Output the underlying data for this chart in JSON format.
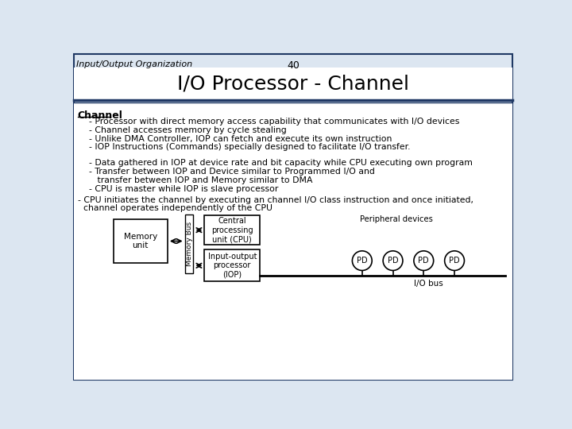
{
  "title": "I/O Processor - Channel",
  "slide_number": "40",
  "slide_label": "Input/Output Organization",
  "bg_color": "#dce6f1",
  "border_color": "#1f3864",
  "font_family": "DejaVu Sans",
  "header_underline": "Channel",
  "bullets": [
    "    - Processor with direct memory access capability that communicates with I/O devices",
    "    - Channel accesses memory by cycle stealing",
    "    - Unlike DMA Controller, IOP can fetch and execute its own instruction",
    "    - IOP Instructions (Commands) specially designed to facilitate I/O transfer."
  ],
  "bullets2": [
    "    - Data gathered in IOP at device rate and bit capacity while CPU executing own program",
    "    - Transfer between IOP and Device similar to Programmed I/O and",
    "       transfer between IOP and Memory similar to DMA",
    "    - CPU is master while IOP is slave processor"
  ],
  "bullet3": "- CPU initiates the channel by executing an channel I/O class instruction and once initiated,",
  "bullet4": "  channel operates independently of the CPU",
  "box_memory_label": "Memory\nunit",
  "box_cpu_label": "Central\nprocessing\nunit (CPU)",
  "box_iop_label": "Input-output\nprocessor\n(IOP)",
  "bus_label": "Memory Bus",
  "pd_label": "PD",
  "peripheral_label": "Peripheral devices",
  "io_bus_label": "I/O bus"
}
